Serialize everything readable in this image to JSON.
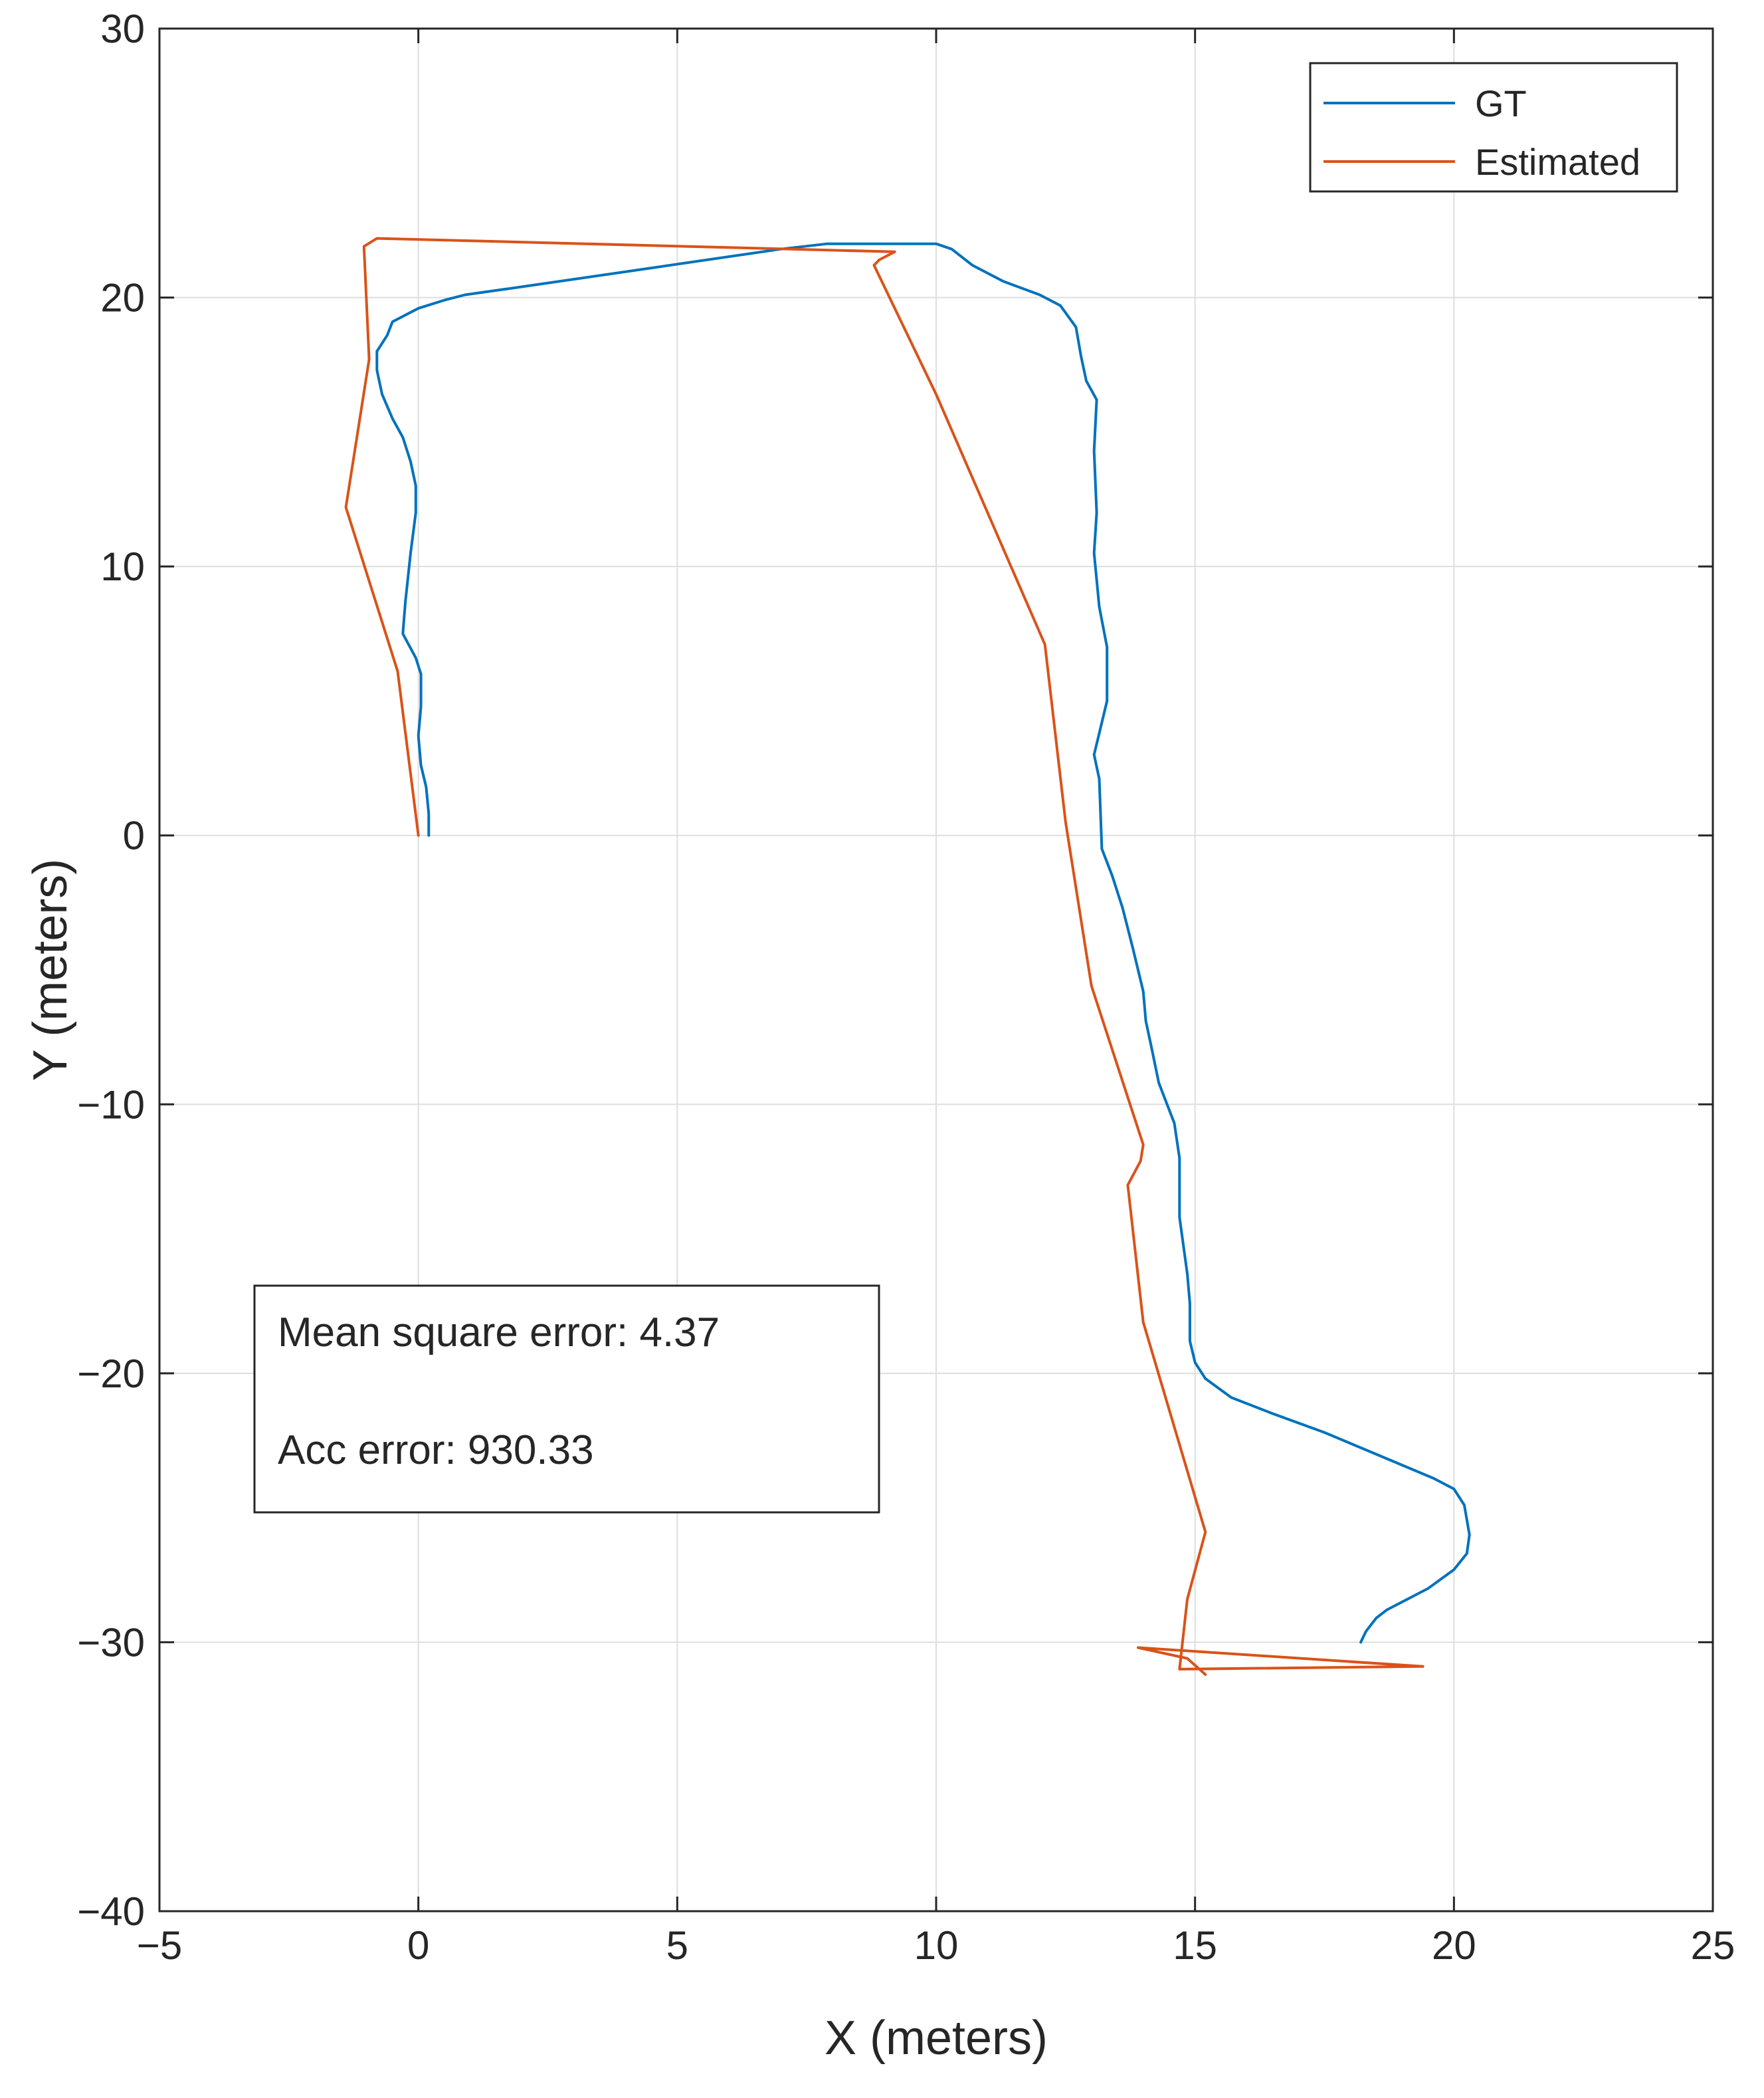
{
  "chart_data": {
    "type": "line",
    "xlabel": "X (meters)",
    "ylabel": "Y (meters)",
    "xlim": [
      -5,
      25
    ],
    "ylim": [
      -40,
      30
    ],
    "xticks": [
      -5,
      0,
      5,
      10,
      15,
      20,
      25
    ],
    "yticks": [
      -40,
      -30,
      -20,
      -10,
      0,
      10,
      20,
      30
    ],
    "xtick_labels": [
      "−5",
      "0",
      "5",
      "10",
      "15",
      "20",
      "25"
    ],
    "ytick_labels": [
      "−40",
      "−30",
      "−20",
      "−10",
      "0",
      "10",
      "20",
      "30"
    ],
    "grid": true,
    "legend_position": "top-right",
    "series": [
      {
        "name": "GT",
        "color": "#0072BD",
        "points": [
          [
            0.2,
            0.0
          ],
          [
            0.2,
            0.8
          ],
          [
            0.15,
            1.8
          ],
          [
            0.05,
            2.6
          ],
          [
            0.0,
            3.7
          ],
          [
            0.05,
            4.8
          ],
          [
            0.05,
            6.0
          ],
          [
            -0.05,
            6.6
          ],
          [
            -0.3,
            7.5
          ],
          [
            -0.25,
            8.7
          ],
          [
            -0.15,
            10.5
          ],
          [
            -0.05,
            12.0
          ],
          [
            -0.05,
            13.0
          ],
          [
            -0.15,
            13.9
          ],
          [
            -0.3,
            14.8
          ],
          [
            -0.5,
            15.5
          ],
          [
            -0.7,
            16.4
          ],
          [
            -0.8,
            17.3
          ],
          [
            -0.8,
            18.0
          ],
          [
            -0.6,
            18.6
          ],
          [
            -0.5,
            19.1
          ],
          [
            0.0,
            19.6
          ],
          [
            0.5,
            19.9
          ],
          [
            0.9,
            20.1
          ],
          [
            2.0,
            20.4
          ],
          [
            4.5,
            21.1
          ],
          [
            7.0,
            21.8
          ],
          [
            7.9,
            22.0
          ],
          [
            9.0,
            22.0
          ],
          [
            10.0,
            22.0
          ],
          [
            10.3,
            21.8
          ],
          [
            10.7,
            21.2
          ],
          [
            11.3,
            20.6
          ],
          [
            12.0,
            20.1
          ],
          [
            12.4,
            19.7
          ],
          [
            12.7,
            18.9
          ],
          [
            12.8,
            17.8
          ],
          [
            12.9,
            16.9
          ],
          [
            13.1,
            16.2
          ],
          [
            13.05,
            14.3
          ],
          [
            13.1,
            12.0
          ],
          [
            13.05,
            10.5
          ],
          [
            13.15,
            8.5
          ],
          [
            13.3,
            7.0
          ],
          [
            13.3,
            5.0
          ],
          [
            13.15,
            3.8
          ],
          [
            13.05,
            3.0
          ],
          [
            13.15,
            2.1
          ],
          [
            13.2,
            -0.5
          ],
          [
            13.4,
            -1.5
          ],
          [
            13.6,
            -2.7
          ],
          [
            13.8,
            -4.2
          ],
          [
            14.0,
            -5.8
          ],
          [
            14.05,
            -6.9
          ],
          [
            14.15,
            -7.8
          ],
          [
            14.3,
            -9.2
          ],
          [
            14.6,
            -10.7
          ],
          [
            14.7,
            -12.0
          ],
          [
            14.7,
            -14.2
          ],
          [
            14.85,
            -16.3
          ],
          [
            14.9,
            -17.4
          ],
          [
            14.9,
            -18.8
          ],
          [
            15.0,
            -19.6
          ],
          [
            15.2,
            -20.2
          ],
          [
            15.7,
            -20.9
          ],
          [
            16.5,
            -21.5
          ],
          [
            17.5,
            -22.2
          ],
          [
            19.6,
            -23.9
          ],
          [
            20.0,
            -24.3
          ],
          [
            20.2,
            -24.9
          ],
          [
            20.3,
            -26.0
          ],
          [
            20.25,
            -26.7
          ],
          [
            20.0,
            -27.3
          ],
          [
            19.5,
            -28.0
          ],
          [
            18.7,
            -28.8
          ],
          [
            18.5,
            -29.1
          ],
          [
            18.3,
            -29.6
          ],
          [
            18.2,
            -30.0
          ]
        ]
      },
      {
        "name": "Estimated",
        "color": "#D95319",
        "points": [
          [
            0.0,
            0.0
          ],
          [
            -0.4,
            6.1
          ],
          [
            -1.4,
            12.2
          ],
          [
            -0.95,
            17.7
          ],
          [
            -1.05,
            21.9
          ],
          [
            -0.8,
            22.2
          ],
          [
            9.2,
            21.7
          ],
          [
            8.9,
            21.4
          ],
          [
            8.8,
            21.2
          ],
          [
            10.0,
            16.4
          ],
          [
            12.1,
            7.1
          ],
          [
            12.5,
            0.5
          ],
          [
            13.0,
            -5.6
          ],
          [
            14.0,
            -11.5
          ],
          [
            13.95,
            -12.1
          ],
          [
            13.7,
            -13.0
          ],
          [
            14.0,
            -18.1
          ],
          [
            15.2,
            -25.9
          ],
          [
            14.85,
            -28.4
          ],
          [
            14.7,
            -31.0
          ],
          [
            19.4,
            -30.9
          ],
          [
            13.9,
            -30.2
          ],
          [
            14.85,
            -30.6
          ],
          [
            15.2,
            -31.2
          ]
        ]
      }
    ],
    "annotation_lines": [
      "Mean square error: 4.37",
      "Acc error: 930.33"
    ]
  }
}
